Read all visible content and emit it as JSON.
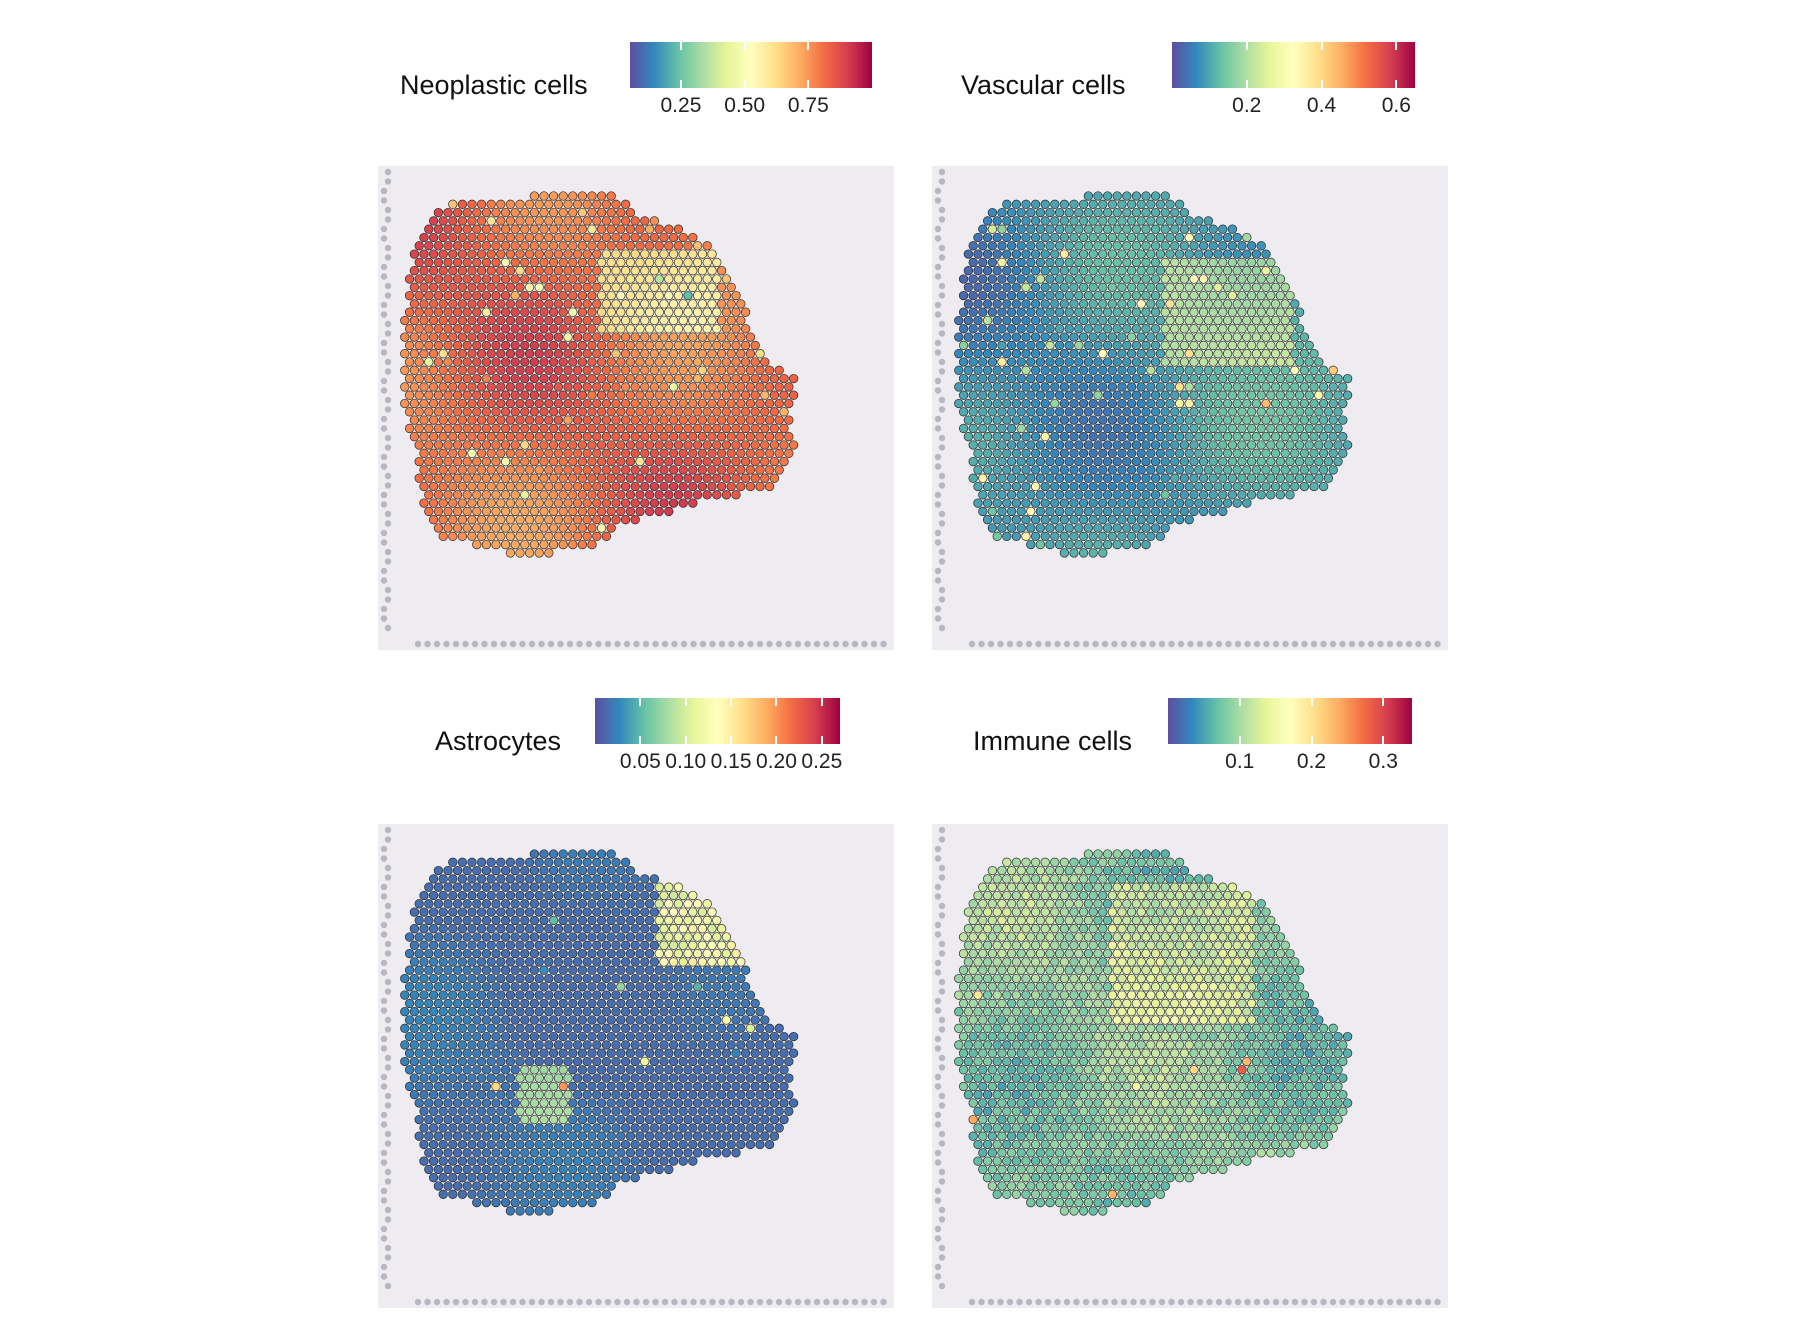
{
  "palette": [
    "#5E4FA2",
    "#3288BD",
    "#66C2A5",
    "#ABDDA4",
    "#E6F598",
    "#FFFFBF",
    "#FEE08B",
    "#FDAE61",
    "#F46D43",
    "#D53E4F",
    "#9E0142"
  ],
  "chart_data": [
    {
      "type": "heatmap",
      "title": "Neoplastic cells",
      "ticks": [
        0.25,
        0.5,
        0.75
      ],
      "tick_labels": [
        "0.25",
        "0.50",
        "0.75"
      ],
      "range": [
        0.05,
        1.0
      ],
      "mean": 0.82
    },
    {
      "type": "heatmap",
      "title": "Vascular cells",
      "ticks": [
        0.2,
        0.4,
        0.6
      ],
      "tick_labels": [
        "0.2",
        "0.4",
        "0.6"
      ],
      "range": [
        0.0,
        0.65
      ],
      "mean": 0.1
    },
    {
      "type": "heatmap",
      "title": "Astrocytes",
      "ticks": [
        0.05,
        0.1,
        0.15,
        0.2,
        0.25
      ],
      "tick_labels": [
        "0.05",
        "0.10",
        "0.15",
        "0.20",
        "0.25"
      ],
      "range": [
        0.0,
        0.27
      ],
      "mean": 0.02
    },
    {
      "type": "heatmap",
      "title": "Immune cells",
      "ticks": [
        0.1,
        0.2,
        0.3
      ],
      "tick_labels": [
        "0.1",
        "0.2",
        "0.3"
      ],
      "range": [
        0.0,
        0.34
      ],
      "mean": 0.08
    }
  ]
}
